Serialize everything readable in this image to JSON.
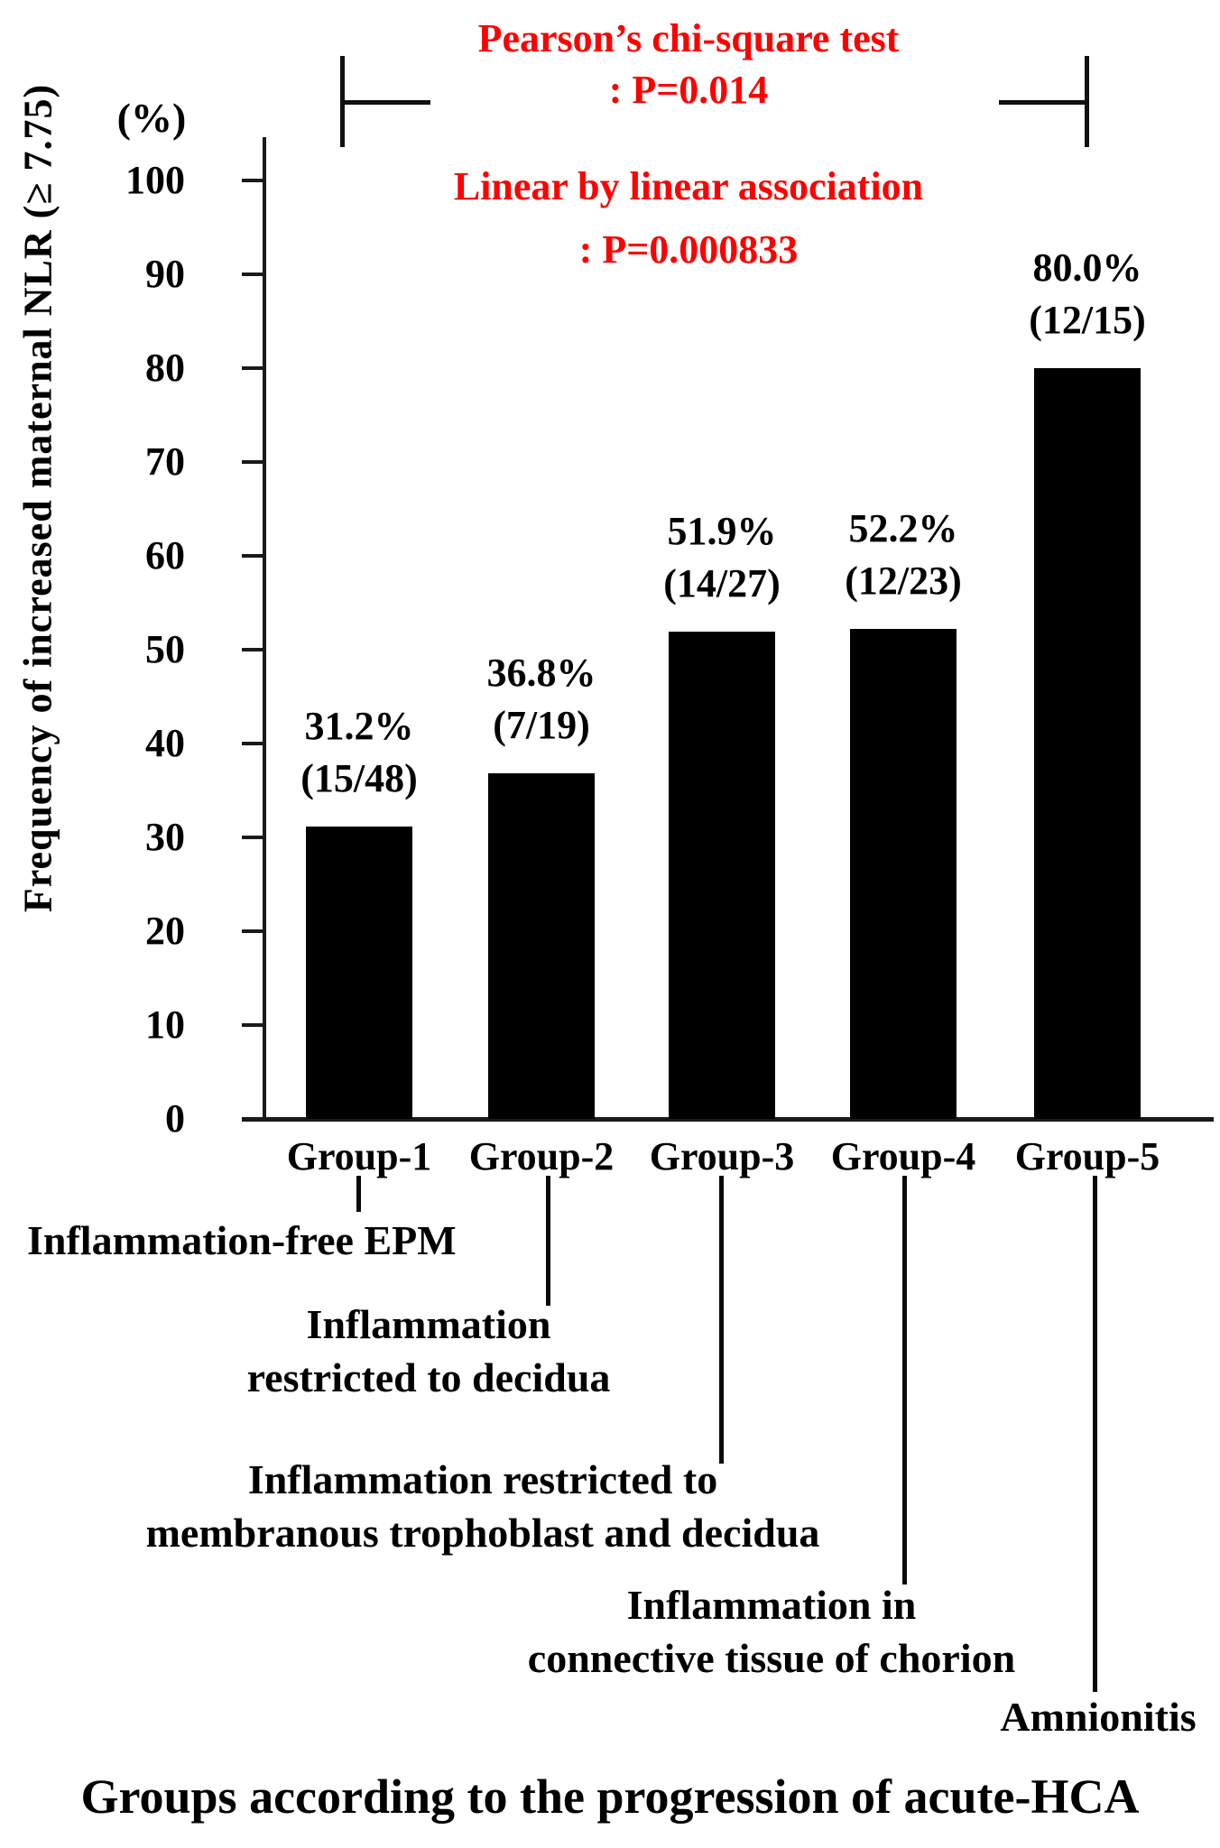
{
  "figure": {
    "ylabel": "Frequency of increased maternal NLR (≥ 7.75)",
    "y_unit_label": "(%)",
    "bottom_title": "Groups according to the progression of acute-HCA",
    "stats": {
      "pearson_line1": "Pearson’s chi-square test",
      "pearson_line2": ": P=0.014",
      "linear_line1": "Linear by linear association",
      "linear_line2": ": P=0.000833"
    },
    "colors": {
      "bar": "#000000",
      "stats_text": "#fe0000",
      "text": "#000000",
      "axis": "#1a1a1a"
    }
  },
  "chart_data": {
    "type": "bar",
    "title": "",
    "xlabel": "Groups according to the progression of acute-HCA",
    "ylabel": "Frequency of increased maternal NLR (≥ 7.75)",
    "y_unit": "(%)",
    "ylim": [
      0,
      100
    ],
    "yticks": [
      0,
      10,
      20,
      30,
      40,
      50,
      60,
      70,
      80,
      90,
      100
    ],
    "grid": false,
    "legend": false,
    "categories": [
      "Group-1",
      "Group-2",
      "Group-3",
      "Group-4",
      "Group-5"
    ],
    "values": [
      31.2,
      36.8,
      51.9,
      52.2,
      80.0
    ],
    "bar_value_labels": [
      [
        "31.2%",
        "(15/48)"
      ],
      [
        "36.8%",
        "(7/19)"
      ],
      [
        "51.9%",
        "(14/27)"
      ],
      [
        "52.2%",
        "(12/23)"
      ],
      [
        "80.0%",
        "(12/15)"
      ]
    ],
    "category_descriptions": [
      [
        "Inflammation-free EPM"
      ],
      [
        "Inflammation",
        "restricted to decidua"
      ],
      [
        "Inflammation restricted to",
        "membranous trophoblast and decidua"
      ],
      [
        "Inflammation in",
        "connective tissue of chorion"
      ],
      [
        "Amnionitis"
      ]
    ],
    "annotations": [
      "Pearson’s chi-square test : P=0.014",
      "Linear by linear association : P=0.000833"
    ]
  }
}
